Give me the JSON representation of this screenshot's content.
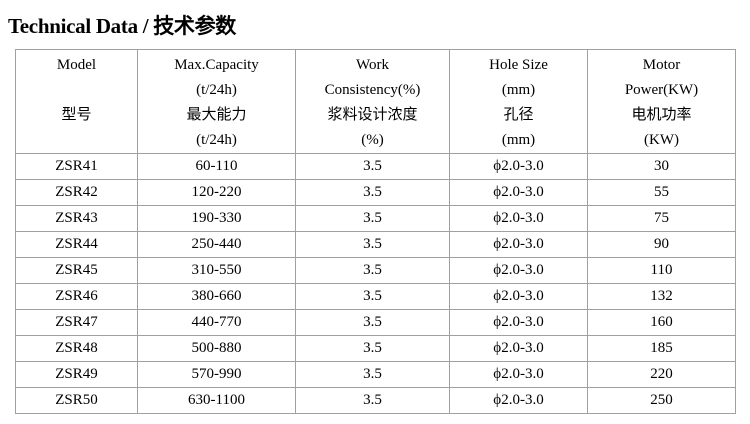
{
  "header": {
    "title": "Technical Data /  技术参数"
  },
  "table": {
    "header": [
      [
        "Model",
        "",
        "型号",
        ""
      ],
      [
        "Max.Capacity",
        "(t/24h)",
        "最大能力",
        "(t/24h)"
      ],
      [
        "Work",
        "Consistency(%)",
        "浆料设计浓度",
        "(%)"
      ],
      [
        "Hole Size",
        "(mm)",
        "孔径",
        "(mm)"
      ],
      [
        "Motor",
        "Power(KW)",
        "电机功率",
        "(KW)"
      ]
    ],
    "rows": [
      [
        "ZSR41",
        "60-110",
        "3.5",
        "ϕ2.0-3.0",
        "30"
      ],
      [
        "ZSR42",
        "120-220",
        "3.5",
        "ϕ2.0-3.0",
        "55"
      ],
      [
        "ZSR43",
        "190-330",
        "3.5",
        "ϕ2.0-3.0",
        "75"
      ],
      [
        "ZSR44",
        "250-440",
        "3.5",
        "ϕ2.0-3.0",
        "90"
      ],
      [
        "ZSR45",
        "310-550",
        "3.5",
        "ϕ2.0-3.0",
        "110"
      ],
      [
        "ZSR46",
        "380-660",
        "3.5",
        "ϕ2.0-3.0",
        "132"
      ],
      [
        "ZSR47",
        "440-770",
        "3.5",
        "ϕ2.0-3.0",
        "160"
      ],
      [
        "ZSR48",
        "500-880",
        "3.5",
        "ϕ2.0-3.0",
        "185"
      ],
      [
        "ZSR49",
        "570-990",
        "3.5",
        "ϕ2.0-3.0",
        "220"
      ],
      [
        "ZSR50",
        "630-1100",
        "3.5",
        "ϕ2.0-3.0",
        "250"
      ]
    ]
  }
}
